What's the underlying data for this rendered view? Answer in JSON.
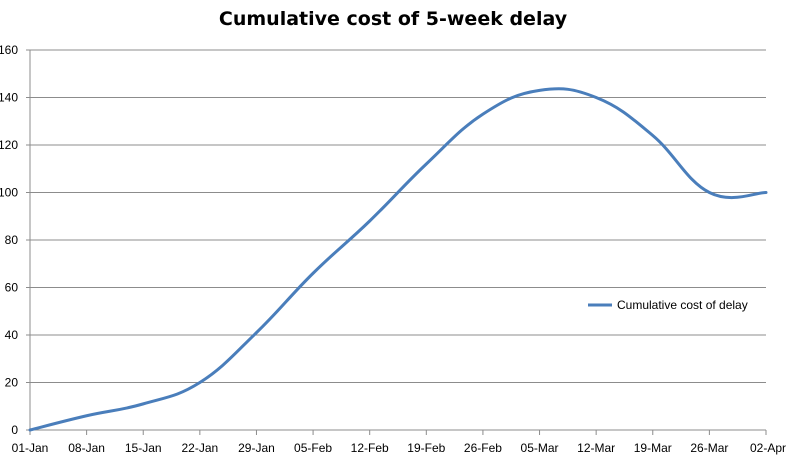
{
  "chart_data": {
    "type": "line",
    "title": "Cumulative cost of 5-week delay",
    "xlabel": "",
    "ylabel": "",
    "ylim": [
      0,
      160
    ],
    "yticks": [
      "0",
      "20",
      "40",
      "60",
      "80",
      "100",
      "120",
      "140",
      "160"
    ],
    "categories": [
      "01-Jan",
      "08-Jan",
      "15-Jan",
      "22-Jan",
      "29-Jan",
      "05-Feb",
      "12-Feb",
      "19-Feb",
      "26-Feb",
      "05-Mar",
      "12-Mar",
      "19-Mar",
      "26-Mar",
      "02-Apr"
    ],
    "grid": "horizontal",
    "legend_position": "right",
    "series": [
      {
        "name": "Cumulative cost of delay",
        "color": "#4a7ebb",
        "values": [
          0,
          6,
          11,
          20,
          41,
          66,
          88,
          112,
          133,
          143,
          140,
          124,
          100,
          100
        ]
      }
    ]
  }
}
